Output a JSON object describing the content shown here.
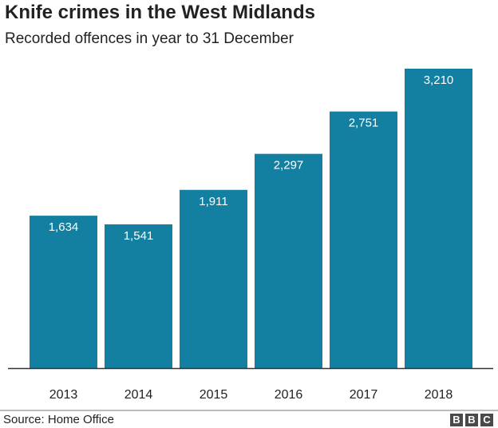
{
  "chart_data": {
    "type": "bar",
    "title": "Knife crimes in the West Midlands",
    "subtitle": "Recorded offences in year to 31 December",
    "categories": [
      "2013",
      "2014",
      "2015",
      "2016",
      "2017",
      "2018"
    ],
    "values": [
      1634,
      1541,
      1911,
      2297,
      2751,
      3210
    ],
    "labels": [
      "1,634",
      "1,541",
      "1,911",
      "2,297",
      "2,751",
      "3,210"
    ],
    "ylim": [
      0,
      3210
    ],
    "bar_color": "#1380a1",
    "grid": false
  },
  "footer": {
    "source": "Source: Home Office",
    "logo": "BBC"
  }
}
